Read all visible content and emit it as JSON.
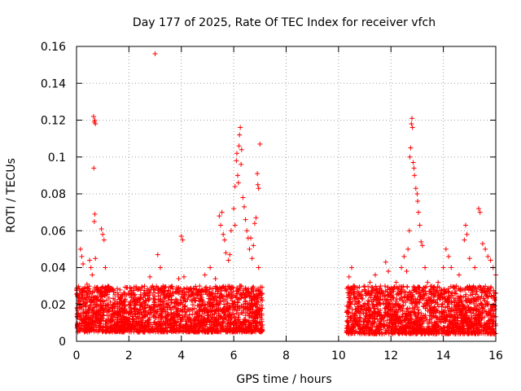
{
  "chart_data": {
    "type": "scatter",
    "title": "Day 177 of 2025, Rate Of TEC Index for receiver vfch",
    "xlabel": "GPS time / hours",
    "ylabel": "ROTI / TECUs",
    "xlim": [
      0,
      16
    ],
    "ylim": [
      0,
      0.16
    ],
    "x_ticks": [
      "0",
      "2",
      "4",
      "6",
      "8",
      "10",
      "12",
      "14",
      "16"
    ],
    "y_ticks": [
      "0",
      "0.02",
      "0.04",
      "0.06",
      "0.08",
      "0.1",
      "0.12",
      "0.14",
      "0.16"
    ],
    "grid": true,
    "marker": "+",
    "color": "#ff0000",
    "series": [
      {
        "name": "vfch",
        "points": [
          [
            0.1,
            0.018
          ],
          [
            0.2,
            0.046
          ],
          [
            0.3,
            0.024
          ],
          [
            0.4,
            0.031
          ],
          [
            0.5,
            0.044
          ],
          [
            0.6,
            0.036
          ],
          [
            0.65,
            0.122
          ],
          [
            0.68,
            0.119
          ],
          [
            0.7,
            0.12
          ],
          [
            0.72,
            0.118
          ],
          [
            0.66,
            0.094
          ],
          [
            0.7,
            0.069
          ],
          [
            0.68,
            0.065
          ],
          [
            0.72,
            0.045
          ],
          [
            0.8,
            0.028
          ],
          [
            0.95,
            0.061
          ],
          [
            1.0,
            0.058
          ],
          [
            1.05,
            0.055
          ],
          [
            1.1,
            0.04
          ],
          [
            1.2,
            0.03
          ],
          [
            1.4,
            0.02
          ],
          [
            1.6,
            0.014
          ],
          [
            1.8,
            0.018
          ],
          [
            2.0,
            0.012
          ],
          [
            2.2,
            0.025
          ],
          [
            2.4,
            0.021
          ],
          [
            2.6,
            0.026
          ],
          [
            2.8,
            0.035
          ],
          [
            2.9,
            0.03
          ],
          [
            3.0,
            0.156
          ],
          [
            3.1,
            0.047
          ],
          [
            3.2,
            0.04
          ],
          [
            3.3,
            0.03
          ],
          [
            3.5,
            0.024
          ],
          [
            3.7,
            0.026
          ],
          [
            3.9,
            0.034
          ],
          [
            4.0,
            0.057
          ],
          [
            4.05,
            0.055
          ],
          [
            4.1,
            0.035
          ],
          [
            4.3,
            0.028
          ],
          [
            4.5,
            0.022
          ],
          [
            4.7,
            0.03
          ],
          [
            4.9,
            0.036
          ],
          [
            5.1,
            0.04
          ],
          [
            5.3,
            0.034
          ],
          [
            5.5,
            0.063
          ],
          [
            5.55,
            0.07
          ],
          [
            5.6,
            0.058
          ],
          [
            5.65,
            0.055
          ],
          [
            5.7,
            0.048
          ],
          [
            5.8,
            0.044
          ],
          [
            5.9,
            0.06
          ],
          [
            6.0,
            0.072
          ],
          [
            6.05,
            0.084
          ],
          [
            6.1,
            0.098
          ],
          [
            6.12,
            0.102
          ],
          [
            6.15,
            0.09
          ],
          [
            6.18,
            0.086
          ],
          [
            6.2,
            0.106
          ],
          [
            6.22,
            0.112
          ],
          [
            6.25,
            0.116
          ],
          [
            6.28,
            0.096
          ],
          [
            6.3,
            0.104
          ],
          [
            6.35,
            0.078
          ],
          [
            6.4,
            0.073
          ],
          [
            6.45,
            0.066
          ],
          [
            6.5,
            0.06
          ],
          [
            6.6,
            0.05
          ],
          [
            6.7,
            0.045
          ],
          [
            6.8,
            0.064
          ],
          [
            6.85,
            0.067
          ],
          [
            6.9,
            0.091
          ],
          [
            6.92,
            0.085
          ],
          [
            6.95,
            0.083
          ],
          [
            7.0,
            0.107
          ],
          [
            6.75,
            0.052
          ],
          [
            6.55,
            0.056
          ],
          [
            6.05,
            0.063
          ],
          [
            5.85,
            0.047
          ],
          [
            6.95,
            0.04
          ],
          [
            10.4,
            0.035
          ],
          [
            10.5,
            0.04
          ],
          [
            10.6,
            0.03
          ],
          [
            10.8,
            0.025
          ],
          [
            11.0,
            0.028
          ],
          [
            11.2,
            0.032
          ],
          [
            11.4,
            0.036
          ],
          [
            11.6,
            0.03
          ],
          [
            11.8,
            0.043
          ],
          [
            11.9,
            0.038
          ],
          [
            12.0,
            0.028
          ],
          [
            12.2,
            0.032
          ],
          [
            12.4,
            0.04
          ],
          [
            12.5,
            0.046
          ],
          [
            12.6,
            0.038
          ],
          [
            12.7,
            0.06
          ],
          [
            12.72,
            0.1
          ],
          [
            12.75,
            0.105
          ],
          [
            12.78,
            0.118
          ],
          [
            12.8,
            0.121
          ],
          [
            12.82,
            0.116
          ],
          [
            12.85,
            0.097
          ],
          [
            12.88,
            0.094
          ],
          [
            12.9,
            0.09
          ],
          [
            12.95,
            0.083
          ],
          [
            13.0,
            0.08
          ],
          [
            13.02,
            0.076
          ],
          [
            13.05,
            0.07
          ],
          [
            13.1,
            0.063
          ],
          [
            13.15,
            0.054
          ],
          [
            13.2,
            0.052
          ],
          [
            13.3,
            0.04
          ],
          [
            13.4,
            0.032
          ],
          [
            13.6,
            0.028
          ],
          [
            13.8,
            0.032
          ],
          [
            14.0,
            0.04
          ],
          [
            14.1,
            0.05
          ],
          [
            14.2,
            0.046
          ],
          [
            14.3,
            0.04
          ],
          [
            14.5,
            0.03
          ],
          [
            14.6,
            0.036
          ],
          [
            14.8,
            0.055
          ],
          [
            14.85,
            0.063
          ],
          [
            14.9,
            0.058
          ],
          [
            15.0,
            0.045
          ],
          [
            15.2,
            0.04
          ],
          [
            15.35,
            0.072
          ],
          [
            15.4,
            0.07
          ],
          [
            15.5,
            0.053
          ],
          [
            15.6,
            0.05
          ],
          [
            15.7,
            0.046
          ],
          [
            15.8,
            0.044
          ],
          [
            15.9,
            0.04
          ],
          [
            16.0,
            0.036
          ],
          [
            0.15,
            0.05
          ],
          [
            0.25,
            0.042
          ],
          [
            0.55,
            0.04
          ],
          [
            5.45,
            0.068
          ],
          [
            6.65,
            0.056
          ],
          [
            12.65,
            0.05
          ]
        ],
        "dense_bands": [
          {
            "x_range": [
              0.0,
              7.1
            ],
            "y_range": [
              0.005,
              0.03
            ],
            "count": 2200
          },
          {
            "x_range": [
              10.3,
              16.0
            ],
            "y_range": [
              0.004,
              0.03
            ],
            "count": 1800
          }
        ]
      }
    ]
  }
}
